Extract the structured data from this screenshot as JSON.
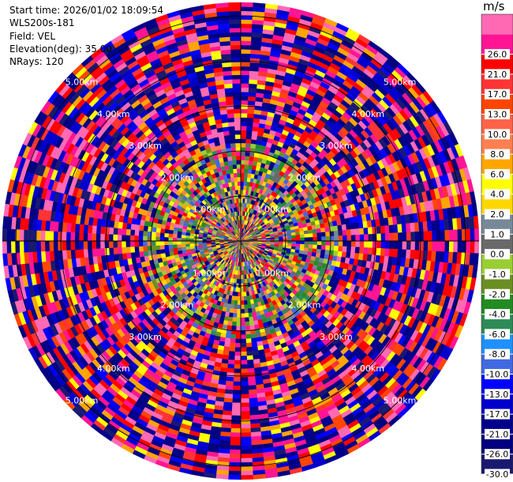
{
  "header": {
    "start_time": "Start time: 2026/01/02 18:09:54",
    "instrument": "WLS200s-181",
    "field": "Field: VEL",
    "elevation": "Elevation(deg): 35.00",
    "nrays": "NRays: 120"
  },
  "chart_data": {
    "type": "heatmap",
    "projection": "polar-ppi",
    "field": "VEL",
    "units": "m/s",
    "n_rays": 120,
    "elevation_deg": 35.0,
    "max_range_km": 5.3,
    "range_rings_km": [
      1,
      2,
      3,
      4,
      5
    ],
    "ring_labels": [
      "1.00km",
      "2.00km",
      "3.00km",
      "4.00km",
      "5.00km"
    ],
    "ring_label_directions": [
      "NW",
      "NE",
      "SW",
      "SE"
    ],
    "crosshair_axes": true,
    "colorbar": {
      "unit_label": "m/s",
      "levels": [
        -30.0,
        -26.0,
        -21.0,
        -17.0,
        -13.0,
        -10.0,
        -8.0,
        -6.0,
        -4.0,
        -2.0,
        -1.0,
        0.0,
        1.0,
        2.0,
        4.0,
        6.0,
        8.0,
        10.0,
        13.0,
        17.0,
        21.0,
        26.0
      ],
      "tick_labels": [
        "-30.0",
        "-26.0",
        "-21.0",
        "-17.0",
        "-13.0",
        "-10.0",
        "-8.0",
        "-6.0",
        "-4.0",
        "-2.0",
        "-1.0",
        "0.0",
        "1.0",
        "2.0",
        "4.0",
        "6.0",
        "8.0",
        "10.0",
        "13.0",
        "17.0",
        "21.0",
        "26.0"
      ],
      "colors": [
        "#191970",
        "#000080",
        "#00008B",
        "#0000CD",
        "#0000FF",
        "#4169E1",
        "#1E90FF",
        "#2E8B57",
        "#228B22",
        "#6B8E23",
        "#9ACD32",
        "#696969",
        "#778899",
        "#FFD700",
        "#FFFF00",
        "#FFA500",
        "#FF7F50",
        "#FF6347",
        "#FF4500",
        "#FF3333",
        "#FF0000",
        "#FF1493",
        "#FF69B4"
      ]
    },
    "structure_notes": "near-field (r < 2.2 km): yellow/green/olive/gray low velocities; far-field: noisy mix of pink, red, blue and navy values"
  }
}
